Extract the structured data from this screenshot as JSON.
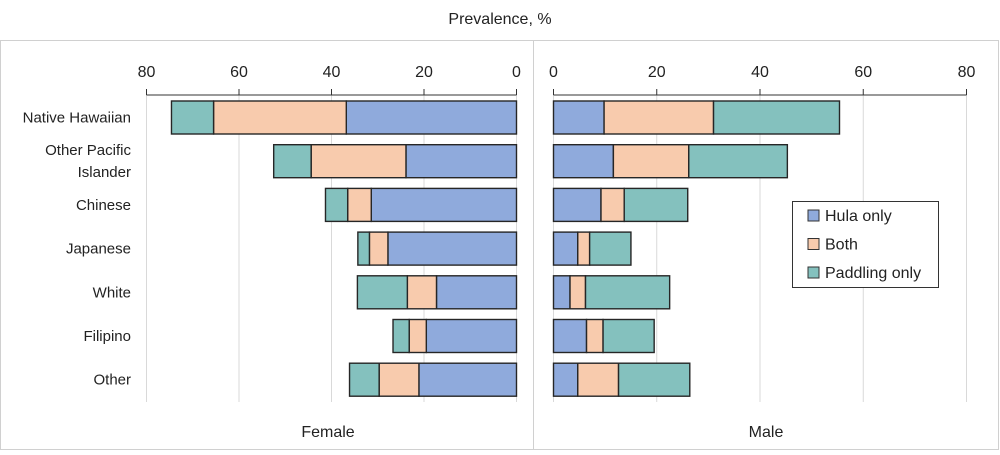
{
  "chart_data": [
    {
      "type": "bar",
      "orientation": "horizontal-stacked",
      "panel": "Female",
      "title": "Prevalence, %",
      "xlim": [
        80,
        0
      ],
      "xticks": [
        "80",
        "60",
        "40",
        "20",
        "0"
      ],
      "grid": true,
      "categories": [
        "Native Hawaiian",
        "Other Pacific Islander",
        "Chinese",
        "Japanese",
        "White",
        "Filipino",
        "Other"
      ],
      "series": [
        {
          "name": "Hula only",
          "color": "#8faadc",
          "values": [
            36.8,
            23.9,
            31.4,
            27.8,
            17.3,
            19.5,
            21.1
          ]
        },
        {
          "name": "Both",
          "color": "#f8cbad",
          "values": [
            28.7,
            20.5,
            5.1,
            4.0,
            6.3,
            3.7,
            8.6
          ]
        },
        {
          "name": "Paddling only",
          "color": "#84c1be",
          "values": [
            9.1,
            8.1,
            4.8,
            2.5,
            10.8,
            3.5,
            6.4
          ]
        }
      ]
    },
    {
      "type": "bar",
      "orientation": "horizontal-stacked",
      "panel": "Male",
      "xlim": [
        0,
        80
      ],
      "xticks": [
        "0",
        "20",
        "40",
        "60",
        "80"
      ],
      "grid": true,
      "legend": "right",
      "categories": [
        "Native Hawaiian",
        "Other Pacific Islander",
        "Chinese",
        "Japanese",
        "White",
        "Filipino",
        "Other"
      ],
      "series": [
        {
          "name": "Hula only",
          "color": "#8faadc",
          "values": [
            9.8,
            11.6,
            9.2,
            4.7,
            3.2,
            6.4,
            4.7
          ]
        },
        {
          "name": "Both",
          "color": "#f8cbad",
          "values": [
            21.2,
            14.6,
            4.5,
            2.3,
            3.0,
            3.2,
            7.9
          ]
        },
        {
          "name": "Paddling only",
          "color": "#84c1be",
          "values": [
            24.4,
            19.1,
            12.3,
            8.0,
            16.3,
            9.9,
            13.8
          ]
        }
      ]
    }
  ],
  "labels": {
    "title": "Prevalence, %",
    "female": "Female",
    "male": "Male",
    "categories_display": [
      [
        "Native Hawaiian"
      ],
      [
        "Other Pacific",
        "Islander"
      ],
      [
        "Chinese"
      ],
      [
        "Japanese"
      ],
      [
        "White"
      ],
      [
        "Filipino"
      ],
      [
        "Other"
      ]
    ]
  }
}
